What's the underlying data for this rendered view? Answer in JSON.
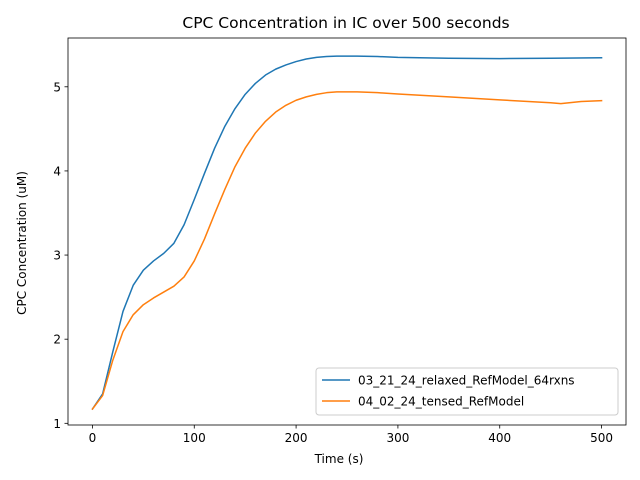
{
  "chart_data": {
    "type": "line",
    "title": "CPC Concentration in IC over 500 seconds",
    "xlabel": "Time (s)",
    "ylabel": "CPC Concentration (uM)",
    "xlim": [
      -24,
      524
    ],
    "ylim": [
      0.98,
      5.58
    ],
    "xticks": [
      0,
      100,
      200,
      300,
      400,
      500
    ],
    "yticks": [
      1,
      2,
      3,
      4,
      5
    ],
    "grid": false,
    "legend_position": "lower right",
    "series": [
      {
        "name": "03_21_24_relaxed_RefModel_64rxns",
        "color": "#1f77b4",
        "x": [
          0,
          10,
          20,
          30,
          40,
          50,
          60,
          70,
          80,
          90,
          100,
          110,
          120,
          130,
          140,
          150,
          160,
          170,
          180,
          190,
          200,
          210,
          220,
          230,
          240,
          250,
          260,
          280,
          300,
          350,
          400,
          450,
          500
        ],
        "y": [
          1.17,
          1.35,
          1.85,
          2.33,
          2.64,
          2.82,
          2.93,
          3.02,
          3.14,
          3.36,
          3.66,
          3.97,
          4.27,
          4.53,
          4.74,
          4.91,
          5.04,
          5.14,
          5.21,
          5.26,
          5.3,
          5.33,
          5.35,
          5.36,
          5.365,
          5.365,
          5.365,
          5.36,
          5.35,
          5.34,
          5.335,
          5.34,
          5.345
        ]
      },
      {
        "name": "04_02_24_tensed_RefModel",
        "color": "#ff7f0e",
        "x": [
          0,
          10,
          20,
          30,
          40,
          50,
          60,
          70,
          80,
          90,
          100,
          110,
          120,
          130,
          140,
          150,
          160,
          170,
          180,
          190,
          200,
          210,
          220,
          230,
          240,
          250,
          260,
          280,
          300,
          350,
          400,
          450,
          460,
          480,
          500
        ],
        "y": [
          1.17,
          1.33,
          1.75,
          2.09,
          2.29,
          2.41,
          2.49,
          2.56,
          2.63,
          2.74,
          2.93,
          3.19,
          3.49,
          3.78,
          4.05,
          4.27,
          4.45,
          4.59,
          4.7,
          4.78,
          4.84,
          4.88,
          4.91,
          4.93,
          4.94,
          4.94,
          4.94,
          4.93,
          4.915,
          4.88,
          4.845,
          4.81,
          4.8,
          4.825,
          4.835
        ]
      }
    ]
  }
}
